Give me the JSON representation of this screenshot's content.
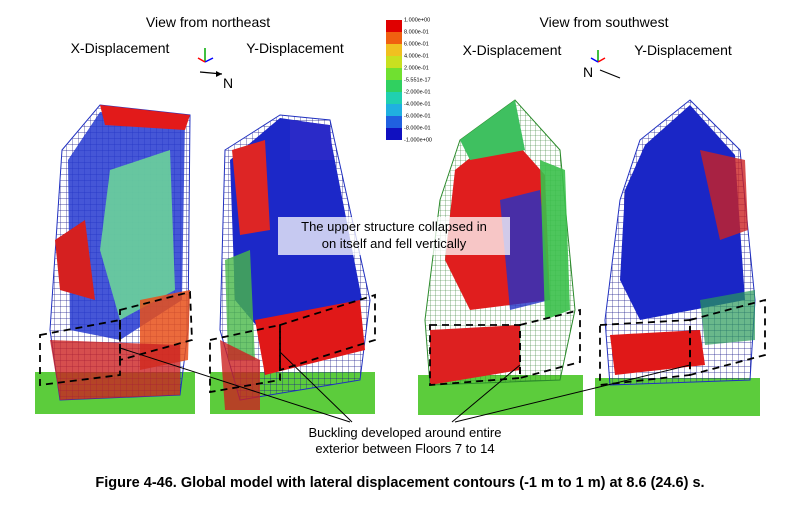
{
  "figure": {
    "left_view": {
      "title": "View from northeast",
      "x_label": "X-Displacement",
      "y_label": "Y-Displacement",
      "north": "N"
    },
    "right_view": {
      "title": "View from southwest",
      "x_label": "X-Displacement",
      "y_label": "Y-Displacement",
      "north": "N"
    },
    "colorbar": {
      "labels": [
        "1.000e+00",
        "8.000e-01",
        "6.000e-01",
        "4.000e-01",
        "2.000e-01",
        "-5.551e-17",
        "-2.000e-01",
        "-4.000e-01",
        "-6.000e-01",
        "-8.000e-01",
        "-1.000e+00"
      ]
    },
    "annotations": {
      "collapse": [
        "The upper structure collapsed in",
        "on itself and fell vertically"
      ],
      "buckling": [
        "Buckling developed around entire",
        "exterior between Floors 7 to 14"
      ]
    },
    "caption": "Figure 4-46. Global model with lateral displacement contours (-1 m to 1 m) at 8.6 (24.6) s."
  }
}
